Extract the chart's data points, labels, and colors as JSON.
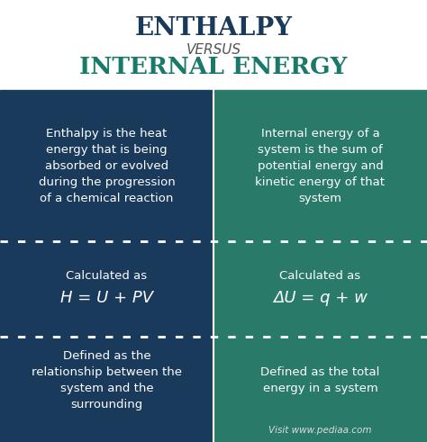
{
  "title1": "ENTHALPY",
  "title2": "VERSUS",
  "title3": "INTERNAL ENERGY",
  "left_color": "#1a3a5c",
  "right_color": "#2a7a6a",
  "bg_color": "#ffffff",
  "text_color": "#ffffff",
  "title1_color": "#1a3a5c",
  "title2_color": "#555555",
  "title3_color": "#1a7a6a",
  "cell_texts": {
    "top_left": "Enthalpy is the heat\nenergy that is being\nabsorbed or evolved\nduring the progression\nof a chemical reaction",
    "top_right": "Internal energy of a\nsystem is the sum of\npotential energy and\nkinetic energy of that\nsystem",
    "mid_left_label": "Calculated as",
    "mid_left_formula": "H = U + PV",
    "mid_right_label": "Calculated as",
    "mid_right_formula": "ΔU = q + w",
    "bot_left": "Defined as the\nrelationship between the\nsystem and the\nsurrounding",
    "bot_right": "Defined as the total\nenergy in a system"
  },
  "watermark": "Visit www.pediaa.com"
}
